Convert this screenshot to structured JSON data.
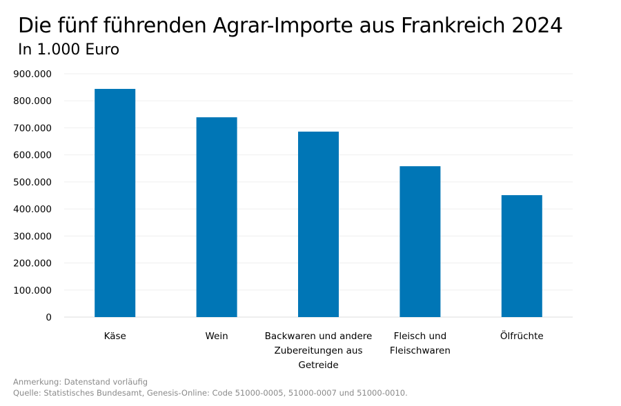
{
  "chart_data": {
    "type": "bar",
    "title": "Die fünf führenden Agrar-Importe aus Frankreich 2024",
    "subtitle": "In 1.000 Euro",
    "categories": [
      [
        "Käse"
      ],
      [
        "Wein"
      ],
      [
        "Backwaren und andere",
        "Zubereitungen aus",
        "Getreide"
      ],
      [
        "Fleisch und",
        "Fleischwaren"
      ],
      [
        "Ölfrüchte"
      ]
    ],
    "values": [
      844000,
      739000,
      686000,
      558000,
      451000
    ],
    "ylim": [
      0,
      900000
    ],
    "yticks": [
      "0",
      "100.000",
      "200.000",
      "300.000",
      "400.000",
      "500.000",
      "600.000",
      "700.000",
      "800.000",
      "900.000"
    ],
    "grid": true,
    "bar_color": "#0076B6",
    "xlabel": "",
    "ylabel": ""
  },
  "footer": {
    "note": "Anmerkung: Datenstand vorläufig",
    "source": "Quelle: Statistisches Bundesamt, Genesis-Online: Code 51000-0005, 51000-0007 und 51000-0010."
  }
}
